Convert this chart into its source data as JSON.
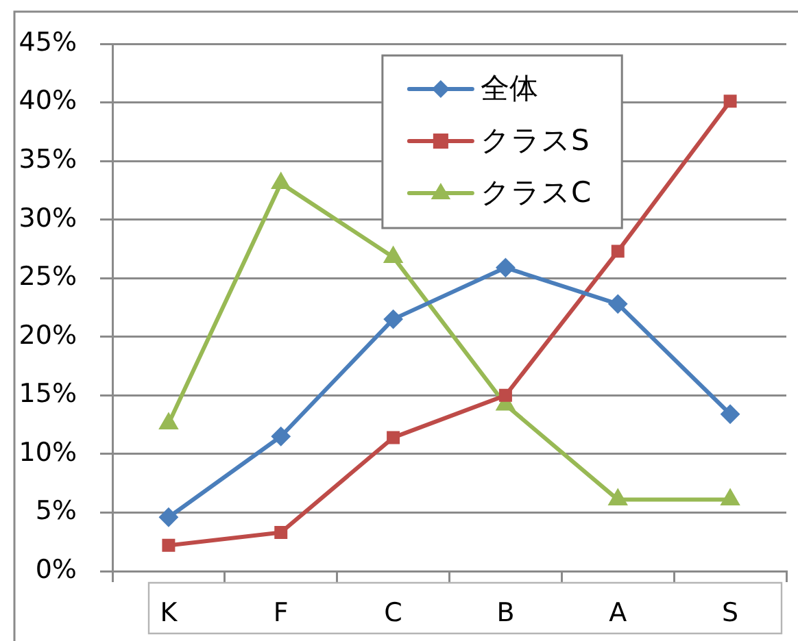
{
  "chart_data": {
    "type": "line",
    "categories": [
      "K",
      "F",
      "C",
      "B",
      "A",
      "S"
    ],
    "series": [
      {
        "name": "全体",
        "color": "#4a7ebb",
        "marker": "diamond",
        "values": [
          4.6,
          11.5,
          21.5,
          25.9,
          22.8,
          13.4
        ]
      },
      {
        "name": "クラスS",
        "color": "#be4b48",
        "marker": "square",
        "values": [
          2.2,
          3.3,
          11.4,
          15.0,
          27.3,
          40.1
        ]
      },
      {
        "name": "クラスC",
        "color": "#98b954",
        "marker": "triangle",
        "values": [
          12.6,
          33.1,
          26.8,
          14.2,
          6.1,
          6.1
        ]
      }
    ],
    "ylim": [
      0,
      45
    ],
    "yticks": [
      {
        "value": 0,
        "label": "0%"
      },
      {
        "value": 5,
        "label": "5%"
      },
      {
        "value": 10,
        "label": "10%"
      },
      {
        "value": 15,
        "label": "15%"
      },
      {
        "value": 20,
        "label": "20%"
      },
      {
        "value": 25,
        "label": "25%"
      },
      {
        "value": 30,
        "label": "30%"
      },
      {
        "value": 35,
        "label": "35%"
      },
      {
        "value": 40,
        "label": "40%"
      },
      {
        "value": 45,
        "label": "45%"
      }
    ],
    "grid": "y",
    "legend": "top",
    "line_style": "solid"
  }
}
